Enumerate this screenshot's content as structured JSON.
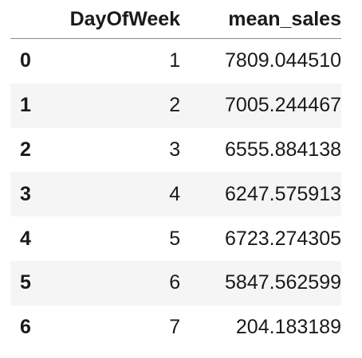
{
  "table": {
    "columns": [
      "",
      "DayOfWeek",
      "mean_sales"
    ],
    "rows": [
      {
        "index": "0",
        "DayOfWeek": "1",
        "mean_sales": "7809.044510"
      },
      {
        "index": "1",
        "DayOfWeek": "2",
        "mean_sales": "7005.244467"
      },
      {
        "index": "2",
        "DayOfWeek": "3",
        "mean_sales": "6555.884138"
      },
      {
        "index": "3",
        "DayOfWeek": "4",
        "mean_sales": "6247.575913"
      },
      {
        "index": "4",
        "DayOfWeek": "5",
        "mean_sales": "6723.274305"
      },
      {
        "index": "5",
        "DayOfWeek": "6",
        "mean_sales": "5847.562599"
      },
      {
        "index": "6",
        "DayOfWeek": "7",
        "mean_sales": "204.183189"
      }
    ]
  }
}
